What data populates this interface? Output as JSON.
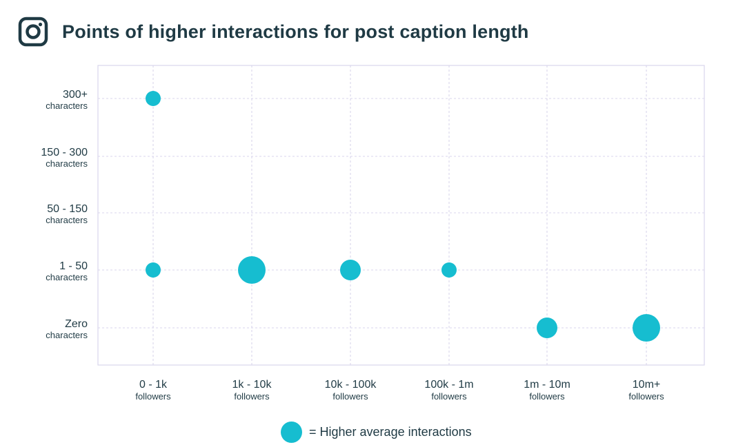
{
  "header": {
    "icon": "instagram-icon",
    "title": "Points of higher interactions for post caption length"
  },
  "colors": {
    "accent": "#16bdd0",
    "text": "#1f3a44",
    "grid": "#d9d6ec",
    "frame": "#d9d6ec"
  },
  "legend": {
    "label": "= Higher average interactions"
  },
  "chart_data": {
    "type": "scatter",
    "title": "Points of higher interactions for post caption length",
    "x_categories": [
      {
        "main": "0 - 1k",
        "sub": "followers"
      },
      {
        "main": "1k - 10k",
        "sub": "followers"
      },
      {
        "main": "10k - 100k",
        "sub": "followers"
      },
      {
        "main": "100k - 1m",
        "sub": "followers"
      },
      {
        "main": "1m - 10m",
        "sub": "followers"
      },
      {
        "main": "10m+",
        "sub": "followers"
      }
    ],
    "y_categories": [
      {
        "main": "300+",
        "sub": "characters"
      },
      {
        "main": "150 - 300",
        "sub": "characters"
      },
      {
        "main": "50 - 150",
        "sub": "characters"
      },
      {
        "main": "1 - 50",
        "sub": "characters"
      },
      {
        "main": "Zero",
        "sub": "characters"
      }
    ],
    "points": [
      {
        "x": "0 - 1k",
        "y": "300+",
        "size": "small"
      },
      {
        "x": "0 - 1k",
        "y": "1 - 50",
        "size": "small"
      },
      {
        "x": "1k - 10k",
        "y": "1 - 50",
        "size": "large"
      },
      {
        "x": "10k - 100k",
        "y": "1 - 50",
        "size": "medium"
      },
      {
        "x": "100k - 1m",
        "y": "1 - 50",
        "size": "small"
      },
      {
        "x": "1m - 10m",
        "y": "Zero",
        "size": "medium"
      },
      {
        "x": "10m+",
        "y": "Zero",
        "size": "large"
      }
    ],
    "grid": true,
    "grid_style": "dotted",
    "legend_position": "bottom-center"
  }
}
